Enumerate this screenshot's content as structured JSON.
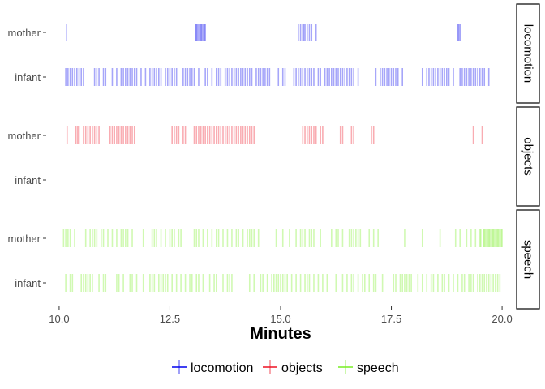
{
  "chart_data": {
    "type": "event-raster",
    "xlabel": "Minutes",
    "xlim": [
      9.8,
      20.2
    ],
    "x_ticks": [
      10.0,
      12.5,
      15.0,
      17.5,
      20.0
    ],
    "x_tick_labels": [
      "10.0",
      "12.5",
      "15.0",
      "17.5",
      "20.0"
    ],
    "rows": [
      "mother",
      "infant"
    ],
    "legend_position": "bottom",
    "grid": false,
    "colors": {
      "locomotion": "#0000ee",
      "objects": "#ee1122",
      "speech": "#77ee22"
    },
    "panels": [
      {
        "name": "locomotion",
        "color": "#0000ee",
        "series": [
          {
            "name": "mother",
            "events": [
              10.17,
              13.08,
              13.1,
              13.12,
              13.15,
              13.18,
              13.2,
              13.22,
              13.25,
              13.28,
              13.3,
              15.4,
              15.45,
              15.5,
              15.52,
              15.55,
              15.6,
              15.65,
              15.7,
              15.8,
              19.0,
              19.02,
              19.05
            ]
          },
          {
            "name": "infant",
            "events": [
              10.15,
              10.2,
              10.25,
              10.3,
              10.35,
              10.4,
              10.45,
              10.5,
              10.55,
              10.8,
              10.85,
              10.9,
              11.0,
              11.05,
              11.2,
              11.3,
              11.4,
              11.45,
              11.5,
              11.55,
              11.6,
              11.65,
              11.7,
              11.75,
              11.85,
              11.95,
              12.05,
              12.1,
              12.15,
              12.2,
              12.25,
              12.3,
              12.4,
              12.45,
              12.5,
              12.55,
              12.6,
              12.65,
              12.8,
              12.85,
              12.9,
              12.95,
              13.0,
              13.05,
              13.15,
              13.3,
              13.35,
              13.45,
              13.55,
              13.6,
              13.65,
              13.75,
              13.8,
              13.85,
              13.9,
              13.95,
              14.0,
              14.05,
              14.1,
              14.15,
              14.2,
              14.25,
              14.3,
              14.35,
              14.45,
              14.5,
              14.55,
              14.6,
              14.65,
              14.7,
              14.75,
              14.95,
              15.05,
              15.1,
              15.3,
              15.35,
              15.4,
              15.45,
              15.5,
              15.55,
              15.6,
              15.65,
              15.7,
              15.75,
              15.85,
              15.9,
              16.0,
              16.05,
              16.1,
              16.15,
              16.2,
              16.25,
              16.3,
              16.35,
              16.4,
              16.45,
              16.5,
              16.55,
              16.6,
              16.65,
              16.75,
              17.15,
              17.25,
              17.3,
              17.35,
              17.4,
              17.45,
              17.5,
              17.55,
              17.6,
              17.65,
              17.75,
              18.2,
              18.3,
              18.35,
              18.4,
              18.45,
              18.5,
              18.55,
              18.6,
              18.65,
              18.7,
              18.75,
              18.8,
              18.9,
              19.05,
              19.1,
              19.15,
              19.2,
              19.25,
              19.3,
              19.35,
              19.4,
              19.45,
              19.5,
              19.55,
              19.6,
              19.7
            ]
          }
        ]
      },
      {
        "name": "objects",
        "color": "#ee1122",
        "series": [
          {
            "name": "mother",
            "events": [
              10.18,
              10.38,
              10.42,
              10.45,
              10.55,
              10.6,
              10.65,
              10.7,
              10.75,
              10.8,
              10.85,
              10.9,
              11.15,
              11.2,
              11.25,
              11.3,
              11.35,
              11.4,
              11.45,
              11.5,
              11.55,
              11.6,
              11.65,
              11.7,
              12.55,
              12.6,
              12.65,
              12.7,
              12.8,
              12.85,
              13.05,
              13.1,
              13.15,
              13.2,
              13.25,
              13.3,
              13.35,
              13.4,
              13.45,
              13.5,
              13.55,
              13.6,
              13.65,
              13.7,
              13.75,
              13.8,
              13.85,
              13.9,
              13.95,
              14.0,
              14.05,
              14.1,
              14.15,
              14.2,
              14.25,
              14.3,
              14.35,
              14.4,
              15.5,
              15.55,
              15.6,
              15.65,
              15.7,
              15.75,
              15.8,
              15.9,
              15.95,
              16.35,
              16.4,
              16.6,
              16.65,
              17.05,
              17.1,
              19.35,
              19.55
            ]
          },
          {
            "name": "infant",
            "events": []
          }
        ]
      },
      {
        "name": "speech",
        "color": "#77ee22",
        "series": [
          {
            "name": "mother",
            "events": [
              10.1,
              10.15,
              10.2,
              10.25,
              10.35,
              10.6,
              10.7,
              10.75,
              10.8,
              10.85,
              10.95,
              11.0,
              11.1,
              11.2,
              11.3,
              11.4,
              11.45,
              11.5,
              11.55,
              11.65,
              11.9,
              12.1,
              12.15,
              12.2,
              12.3,
              12.4,
              12.5,
              12.55,
              12.6,
              12.7,
              12.75,
              13.05,
              13.1,
              13.15,
              13.25,
              13.35,
              13.45,
              13.55,
              13.6,
              13.7,
              13.8,
              13.9,
              14.0,
              14.05,
              14.15,
              14.25,
              14.3,
              14.35,
              14.4,
              14.5,
              14.9,
              15.05,
              15.2,
              15.35,
              15.45,
              15.5,
              15.55,
              15.65,
              15.7,
              15.75,
              15.9,
              16.15,
              16.25,
              16.3,
              16.4,
              16.55,
              16.6,
              16.65,
              16.7,
              16.75,
              16.8,
              17.0,
              17.1,
              17.2,
              17.8,
              18.2,
              18.6,
              18.95,
              19.05,
              19.2,
              19.3,
              19.4,
              19.5,
              19.6,
              19.65,
              19.7,
              19.75,
              19.8,
              19.85,
              19.9,
              19.95,
              20.0,
              19.58,
              19.68,
              19.78,
              19.88,
              19.98,
              19.52,
              19.62,
              19.72,
              19.82,
              19.92
            ]
          },
          {
            "name": "infant",
            "events": [
              10.15,
              10.25,
              10.3,
              10.5,
              10.55,
              10.6,
              10.65,
              10.7,
              10.75,
              10.9,
              11.0,
              11.05,
              11.3,
              11.35,
              11.45,
              11.6,
              11.65,
              11.75,
              11.9,
              12.05,
              12.1,
              12.15,
              12.25,
              12.3,
              12.35,
              12.4,
              12.45,
              12.55,
              12.65,
              12.75,
              12.85,
              12.95,
              13.0,
              13.1,
              13.15,
              13.25,
              13.4,
              13.5,
              13.55,
              13.7,
              13.8,
              13.85,
              13.9,
              14.3,
              14.4,
              14.55,
              14.6,
              14.7,
              14.8,
              14.85,
              14.9,
              14.95,
              15.0,
              15.05,
              15.1,
              15.15,
              15.25,
              15.35,
              15.45,
              15.55,
              15.6,
              15.65,
              15.75,
              15.85,
              15.95,
              16.05,
              16.25,
              16.4,
              16.5,
              16.6,
              16.65,
              16.75,
              16.85,
              16.9,
              17.0,
              17.1,
              17.15,
              17.3,
              17.55,
              17.6,
              17.7,
              17.75,
              17.8,
              17.85,
              17.9,
              17.95,
              18.1,
              18.2,
              18.3,
              18.4,
              18.45,
              18.55,
              18.65,
              18.7,
              18.8,
              18.9,
              19.0,
              19.1,
              19.15,
              19.25,
              19.3,
              19.35,
              19.45,
              19.5,
              19.55,
              19.6,
              19.65,
              19.7,
              19.75,
              19.8,
              19.85,
              19.9,
              19.95
            ]
          }
        ]
      }
    ]
  }
}
